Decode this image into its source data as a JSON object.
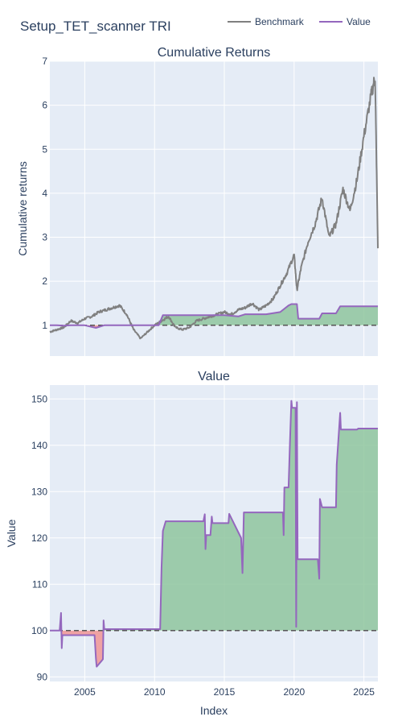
{
  "title": "Setup_TET_scanner TRI",
  "legend": {
    "placement": "top-right",
    "items": [
      {
        "label": "Benchmark",
        "color": "#808080"
      },
      {
        "label": "Value",
        "color": "#9467bd"
      }
    ]
  },
  "colors": {
    "plot_bg": "#e5ecf6",
    "grid": "#ffffff",
    "gain_fill": "#8fc69d",
    "loss_fill": "#ef9a9a",
    "baseline": "#555555"
  },
  "chart_data": [
    {
      "type": "line",
      "title": "Cumulative Returns",
      "xlabel": "",
      "ylabel": "Cumulative returns",
      "xlim": [
        2002.5,
        2026.0
      ],
      "ylim": [
        0.3,
        7.0
      ],
      "yticks": [
        1,
        2,
        3,
        4,
        5,
        6,
        7
      ],
      "baseline": 1.0,
      "grid": true,
      "series": [
        {
          "name": "Benchmark",
          "x": [
            2002.5,
            2003.0,
            2003.5,
            2004.0,
            2004.5,
            2005.0,
            2005.5,
            2006.0,
            2006.5,
            2007.0,
            2007.5,
            2008.0,
            2008.5,
            2009.0,
            2009.5,
            2010.0,
            2010.5,
            2011.0,
            2011.5,
            2012.0,
            2012.5,
            2013.0,
            2013.5,
            2014.0,
            2014.5,
            2015.0,
            2015.5,
            2016.0,
            2016.5,
            2017.0,
            2017.5,
            2018.0,
            2018.5,
            2019.0,
            2019.5,
            2020.0,
            2020.2,
            2020.5,
            2021.0,
            2021.5,
            2022.0,
            2022.5,
            2023.0,
            2023.5,
            2024.0,
            2024.5,
            2025.0,
            2025.5,
            2025.8,
            2026.0
          ],
          "values": [
            0.85,
            0.9,
            0.95,
            1.1,
            1.05,
            1.15,
            1.2,
            1.3,
            1.35,
            1.4,
            1.45,
            1.25,
            0.9,
            0.7,
            0.85,
            1.0,
            1.1,
            1.2,
            0.95,
            0.9,
            0.95,
            1.1,
            1.15,
            1.2,
            1.25,
            1.3,
            1.25,
            1.35,
            1.4,
            1.5,
            1.35,
            1.45,
            1.6,
            1.9,
            2.2,
            2.6,
            1.8,
            2.3,
            2.9,
            3.3,
            3.9,
            3.0,
            3.3,
            4.1,
            3.6,
            4.3,
            5.3,
            6.2,
            6.65,
            2.75
          ]
        },
        {
          "name": "Value",
          "x": [
            2002.5,
            2003.0,
            2003.5,
            2004.0,
            2005.0,
            2005.8,
            2006.4,
            2007.0,
            2008.0,
            2009.0,
            2010.3,
            2010.6,
            2011.0,
            2012.0,
            2013.5,
            2014.0,
            2015.0,
            2016.0,
            2016.5,
            2017.0,
            2018.0,
            2019.0,
            2019.6,
            2019.8,
            2020.2,
            2020.3,
            2021.0,
            2021.8,
            2022.0,
            2023.0,
            2023.3,
            2024.0,
            2025.0,
            2026.0
          ],
          "values": [
            1.0,
            1.0,
            0.99,
            1.0,
            1.0,
            0.94,
            1.0,
            1.0,
            1.0,
            1.0,
            1.0,
            1.23,
            1.23,
            1.23,
            1.23,
            1.23,
            1.23,
            1.2,
            1.25,
            1.25,
            1.25,
            1.3,
            1.45,
            1.48,
            1.48,
            1.15,
            1.15,
            1.15,
            1.27,
            1.27,
            1.43,
            1.43,
            1.43,
            1.43
          ]
        }
      ]
    },
    {
      "type": "line",
      "title": "Value",
      "xlabel": "Index",
      "ylabel": "Value",
      "xlim": [
        2002.5,
        2026.0
      ],
      "ylim": [
        89,
        153
      ],
      "yticks": [
        90,
        100,
        110,
        120,
        130,
        140,
        150
      ],
      "xticks": [
        2005,
        2010,
        2015,
        2020,
        2025
      ],
      "baseline": 100,
      "grid": true,
      "series": [
        {
          "name": "Value",
          "x": [
            2002.5,
            2003.2,
            2003.3,
            2003.35,
            2003.4,
            2005.7,
            2005.8,
            2005.85,
            2006.3,
            2006.35,
            2006.4,
            2006.5,
            2008.0,
            2010.4,
            2010.5,
            2010.6,
            2010.8,
            2013.5,
            2013.6,
            2013.65,
            2013.7,
            2014.0,
            2014.1,
            2014.15,
            2015.3,
            2015.35,
            2016.2,
            2016.3,
            2016.4,
            2019.2,
            2019.25,
            2019.3,
            2019.6,
            2019.7,
            2019.8,
            2019.85,
            2020.1,
            2020.15,
            2020.2,
            2020.25,
            2021.7,
            2021.8,
            2021.85,
            2022.0,
            2023.0,
            2023.05,
            2023.3,
            2023.35,
            2024.5,
            2024.6,
            2026.0
          ],
          "values": [
            100,
            100,
            103.8,
            96.2,
            99.0,
            99.0,
            94.0,
            92.2,
            93.8,
            102.2,
            100.3,
            100.3,
            100.3,
            100.3,
            113.5,
            121.5,
            123.6,
            123.6,
            125.1,
            117.6,
            120.6,
            120.6,
            124.6,
            123.2,
            123.2,
            125.2,
            120.0,
            112.4,
            125.5,
            125.5,
            120.6,
            130.9,
            130.9,
            140.4,
            149.6,
            148.1,
            148.1,
            100.8,
            149.3,
            115.4,
            115.4,
            111.2,
            128.4,
            126.6,
            126.6,
            135.8,
            147.0,
            143.4,
            143.4,
            143.6,
            143.6
          ]
        }
      ]
    }
  ]
}
